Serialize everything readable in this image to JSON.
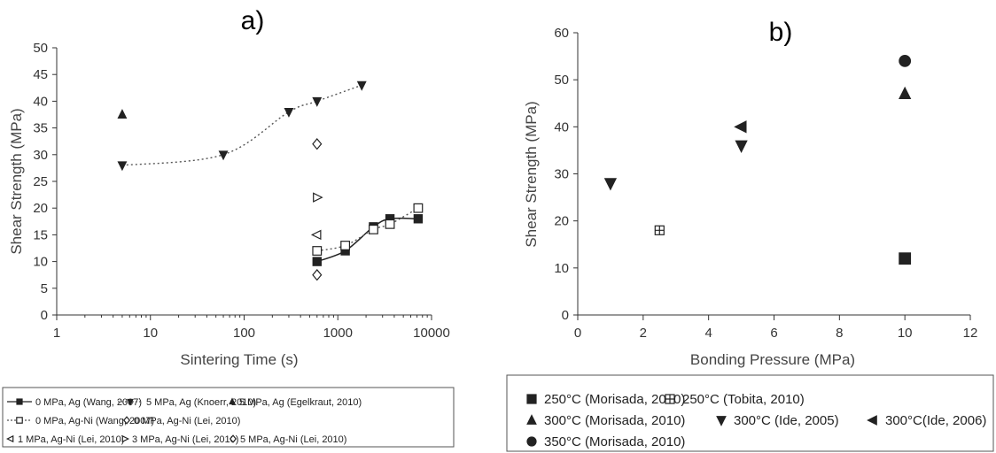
{
  "chart_data": [
    {
      "type": "scatter",
      "panel_label": "a)",
      "title": "",
      "xlabel": "Sintering Time (s)",
      "ylabel": "Shear Strength (MPa)",
      "xscale": "log",
      "xlim": [
        1,
        10000
      ],
      "ylim": [
        0,
        50
      ],
      "xticks": [
        "1",
        "10",
        "100",
        "1000",
        "10000"
      ],
      "yticks": [
        "0",
        "5",
        "10",
        "15",
        "20",
        "25",
        "30",
        "35",
        "40",
        "45",
        "50"
      ],
      "grid": false,
      "legend_position": "below",
      "series": [
        {
          "name": "0 MPa, Ag (Wang, 2007)",
          "marker": "filled-square",
          "line": "solid",
          "x": [
            600,
            1200,
            2400,
            3600,
            7200
          ],
          "y": [
            10,
            12,
            16.5,
            18,
            18
          ]
        },
        {
          "name": "5 MPa, Ag (Knoerr, 2010)",
          "marker": "filled-triangle-down",
          "line": "dotted-fit",
          "x": [
            5,
            60,
            300,
            600,
            1800
          ],
          "y": [
            28,
            30,
            38,
            40,
            43
          ]
        },
        {
          "name": "5 MPa, Ag (Egelkraut, 2010)",
          "marker": "filled-triangle-up",
          "line": "none",
          "x": [
            5
          ],
          "y": [
            37.5
          ]
        },
        {
          "name": "0 MPa, Ag-Ni (Wang, 2007)",
          "marker": "open-square",
          "line": "dotted",
          "x": [
            600,
            1200,
            2400,
            3600,
            7200
          ],
          "y": [
            12,
            13,
            16,
            17,
            20
          ]
        },
        {
          "name": "0 MPa, Ag-Ni (Lei, 2010)",
          "marker": "open-diamond",
          "line": "none",
          "x": [
            600
          ],
          "y": [
            7.5
          ]
        },
        {
          "name": "1 MPa, Ag-Ni (Lei, 2010)",
          "marker": "open-triangle-left",
          "line": "none",
          "x": [
            600
          ],
          "y": [
            15
          ]
        },
        {
          "name": "3 MPa, Ag-Ni (Lei, 2010)",
          "marker": "open-triangle-right",
          "line": "none",
          "x": [
            600
          ],
          "y": [
            22
          ]
        },
        {
          "name": "5 MPa, Ag-Ni (Lei, 2010)",
          "marker": "open-diamond",
          "line": "none",
          "x": [
            600
          ],
          "y": [
            32
          ]
        }
      ]
    },
    {
      "type": "scatter",
      "panel_label": "b)",
      "title": "",
      "xlabel": "Bonding Pressure (MPa)",
      "ylabel": "Shear Strength (MPa)",
      "xscale": "linear",
      "xlim": [
        0,
        12
      ],
      "ylim": [
        0,
        60
      ],
      "xticks": [
        "0",
        "2",
        "4",
        "6",
        "8",
        "10",
        "12"
      ],
      "yticks": [
        "0",
        "10",
        "20",
        "30",
        "40",
        "50",
        "60"
      ],
      "grid": false,
      "legend_position": "below",
      "series": [
        {
          "name": "250°C (Morisada, 2010)",
          "marker": "filled-square",
          "x": [
            10
          ],
          "y": [
            12
          ]
        },
        {
          "name": "250°C (Tobita, 2010)",
          "marker": "boxed-plus",
          "x": [
            2.5
          ],
          "y": [
            18
          ]
        },
        {
          "name": "300°C (Morisada, 2010)",
          "marker": "filled-triangle-up",
          "x": [
            10
          ],
          "y": [
            47
          ]
        },
        {
          "name": "300°C (Ide, 2005)",
          "marker": "filled-triangle-down",
          "x": [
            1,
            5
          ],
          "y": [
            28,
            36
          ]
        },
        {
          "name": "300°C(Ide, 2006)",
          "marker": "filled-triangle-left",
          "x": [
            5
          ],
          "y": [
            40
          ]
        },
        {
          "name": "350°C (Morisada, 2010)",
          "marker": "filled-circle",
          "x": [
            10
          ],
          "y": [
            54
          ]
        }
      ]
    }
  ]
}
